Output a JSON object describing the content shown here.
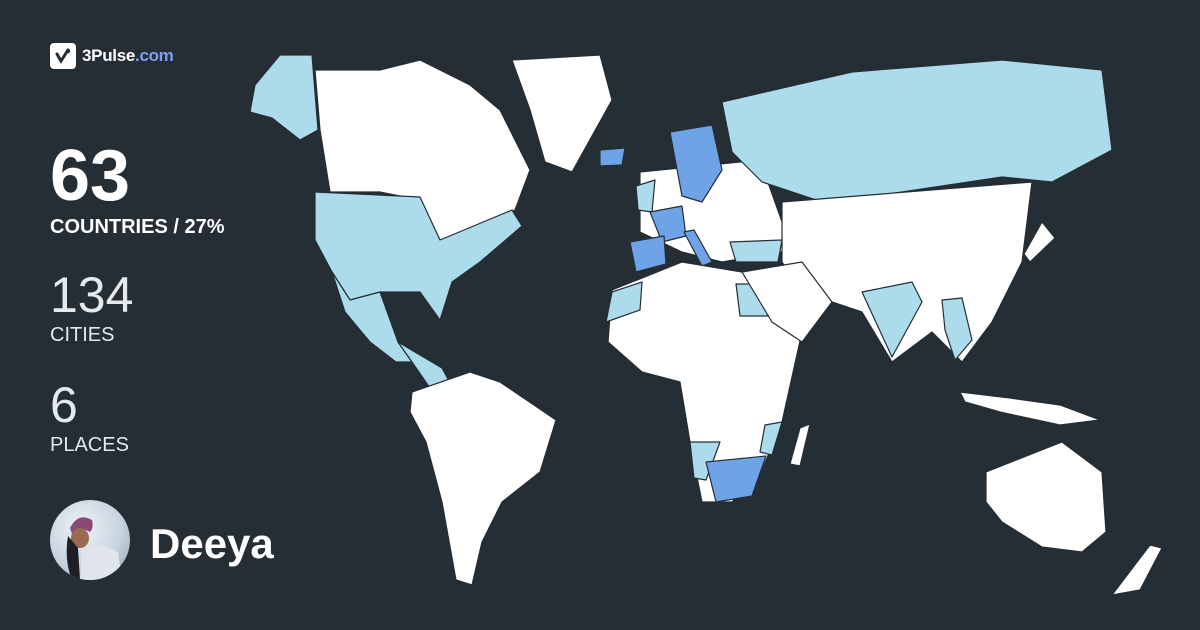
{
  "brand": {
    "name": "3Pulse",
    "domain": ".com"
  },
  "stats": {
    "countries": {
      "value": "63",
      "label": "COUNTRIES / 27%"
    },
    "cities": {
      "value": "134",
      "label": "CITIES"
    },
    "places": {
      "value": "6",
      "label": "PLACES"
    }
  },
  "user": {
    "name": "Deeya"
  },
  "map": {
    "colors": {
      "background": "#252d35",
      "land": "#ffffff",
      "visited": "#acdcec",
      "highlight": "#6fa3e8",
      "border": "#252d35"
    },
    "visited": [
      "Alaska",
      "United States",
      "Mexico",
      "Central America",
      "United Kingdom",
      "Turkey",
      "Egypt",
      "Morocco",
      "Russia",
      "India",
      "Namibia",
      "Mozambique",
      "Southeast Asia"
    ],
    "highlighted": [
      "Iceland",
      "Norway",
      "Sweden",
      "France",
      "Spain",
      "Italy",
      "South Africa"
    ]
  }
}
